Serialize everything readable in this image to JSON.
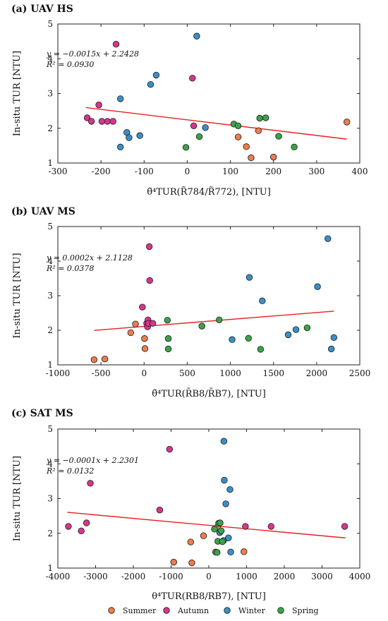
{
  "colors": {
    "Summer": "#ef7b4f",
    "Autumn": "#d6368b",
    "Winter": "#3a8fc9",
    "Spring": "#3aa44a",
    "fit_line": "#e8201f"
  },
  "legend": {
    "items": [
      "Summer",
      "Autumn",
      "Winter",
      "Spring"
    ]
  },
  "chart_data": [
    {
      "type": "scatter",
      "title": "(a) UAV HS",
      "xlabel": "θ̃⁴TUR(R̃784/R̃772), [NTU]",
      "ylabel": "In-situ TUR [NTU]",
      "xlim": [
        -300,
        400
      ],
      "ylim": [
        1,
        5
      ],
      "xticks": [
        -300,
        -200,
        -100,
        0,
        100,
        200,
        300,
        400
      ],
      "yticks": [
        1,
        2,
        3,
        4,
        5
      ],
      "grid": false,
      "legend_position": "bottom",
      "equation": "y = −0.0015x + 2.2428",
      "r2": "R² = 0.0930",
      "fit": {
        "slope": -0.0015,
        "intercept": 2.2428,
        "x_range": [
          -235,
          370
        ]
      },
      "series": [
        {
          "name": "Summer",
          "points": [
            [
              118,
              1.75
            ],
            [
              137,
              1.47
            ],
            [
              148,
              1.15
            ],
            [
              165,
              1.93
            ],
            [
              200,
              1.17
            ],
            [
              370,
              2.18
            ]
          ]
        },
        {
          "name": "Autumn",
          "points": [
            [
              -232,
              2.3
            ],
            [
              -222,
              2.2
            ],
            [
              -205,
              2.67
            ],
            [
              -198,
              2.2
            ],
            [
              -185,
              2.2
            ],
            [
              -172,
              2.2
            ],
            [
              -165,
              4.42
            ],
            [
              12,
              3.44
            ],
            [
              15,
              2.07
            ]
          ]
        },
        {
          "name": "Winter",
          "points": [
            [
              -155,
              2.85
            ],
            [
              -155,
              1.46
            ],
            [
              -140,
              1.88
            ],
            [
              -135,
              1.73
            ],
            [
              -110,
              1.79
            ],
            [
              -85,
              3.26
            ],
            [
              -72,
              3.53
            ],
            [
              22,
              4.65
            ],
            [
              42,
              2.02
            ]
          ]
        },
        {
          "name": "Spring",
          "points": [
            [
              -3,
              1.45
            ],
            [
              28,
              1.76
            ],
            [
              108,
              2.12
            ],
            [
              118,
              2.07
            ],
            [
              168,
              2.29
            ],
            [
              182,
              2.3
            ],
            [
              212,
              1.77
            ],
            [
              248,
              1.46
            ]
          ]
        }
      ]
    },
    {
      "type": "scatter",
      "title": "(b) UAV MS",
      "xlabel": "θ̄⁴TUR(R̄B8/R̄B7), [NTU]",
      "ylabel": "In-situ TUR [NTU]",
      "xlim": [
        -1000,
        2500
      ],
      "ylim": [
        1,
        5
      ],
      "xticks": [
        -1000,
        -500,
        0,
        500,
        1000,
        1500,
        2000,
        2500
      ],
      "yticks": [
        1,
        2,
        3,
        4,
        5
      ],
      "grid": false,
      "legend_position": "bottom",
      "equation": "y = 0.0002x + 2.1128",
      "r2": "R² = 0.0378",
      "fit": {
        "slope": 0.0002,
        "intercept": 2.1128,
        "x_range": [
          -580,
          2200
        ]
      },
      "series": [
        {
          "name": "Summer",
          "points": [
            [
              -580,
              1.15
            ],
            [
              -455,
              1.17
            ],
            [
              -155,
              1.93
            ],
            [
              -100,
              2.18
            ],
            [
              5,
              1.76
            ],
            [
              10,
              1.47
            ]
          ]
        },
        {
          "name": "Autumn",
          "points": [
            [
              -20,
              2.67
            ],
            [
              30,
              2.2
            ],
            [
              40,
              2.1
            ],
            [
              45,
              2.3
            ],
            [
              50,
              2.2
            ],
            [
              60,
              4.42
            ],
            [
              65,
              3.44
            ],
            [
              100,
              2.2
            ]
          ]
        },
        {
          "name": "Winter",
          "points": [
            [
              1020,
              1.73
            ],
            [
              1220,
              3.53
            ],
            [
              1370,
              2.85
            ],
            [
              1670,
              1.87
            ],
            [
              1760,
              2.02
            ],
            [
              2010,
              3.26
            ],
            [
              2130,
              4.65
            ],
            [
              2170,
              1.46
            ],
            [
              2200,
              1.79
            ]
          ]
        },
        {
          "name": "Spring",
          "points": [
            [
              270,
              2.29
            ],
            [
              280,
              1.76
            ],
            [
              280,
              1.46
            ],
            [
              670,
              2.12
            ],
            [
              870,
              2.3
            ],
            [
              1210,
              1.77
            ],
            [
              1350,
              1.45
            ],
            [
              1890,
              2.07
            ]
          ]
        }
      ]
    },
    {
      "type": "scatter",
      "title": "(c) SAT MS",
      "xlabel": "θ⁴TUR(RB8/RB7), [NTU]",
      "ylabel": "In-situ TUR [NTU]",
      "xlim": [
        -4000,
        4000
      ],
      "ylim": [
        1,
        5
      ],
      "xticks": [
        -4000,
        -3000,
        -2000,
        -1000,
        0,
        1000,
        2000,
        3000,
        4000
      ],
      "yticks": [
        1,
        2,
        3,
        4,
        5
      ],
      "grid": false,
      "legend_position": "bottom",
      "equation": "y = −0.0001x + 2.2301",
      "r2": "R² = 0.0132",
      "fit": {
        "slope": -0.0001,
        "intercept": 2.2301,
        "x_range": [
          -3750,
          3620
        ]
      },
      "series": [
        {
          "name": "Summer",
          "points": [
            [
              -930,
              1.17
            ],
            [
              -480,
              1.75
            ],
            [
              -450,
              1.15
            ],
            [
              -140,
              1.93
            ],
            [
              230,
              2.18
            ],
            [
              930,
              1.47
            ]
          ]
        },
        {
          "name": "Autumn",
          "points": [
            [
              -3720,
              2.2
            ],
            [
              -3380,
              2.07
            ],
            [
              -3240,
              2.3
            ],
            [
              -3140,
              3.44
            ],
            [
              -1300,
              2.67
            ],
            [
              -1040,
              4.42
            ],
            [
              970,
              2.2
            ],
            [
              1650,
              2.2
            ],
            [
              3600,
              2.2
            ]
          ]
        },
        {
          "name": "Winter",
          "points": [
            [
              290,
              2.02
            ],
            [
              390,
              1.79
            ],
            [
              410,
              3.53
            ],
            [
              400,
              4.65
            ],
            [
              450,
              2.85
            ],
            [
              520,
              1.87
            ],
            [
              560,
              3.26
            ],
            [
              580,
              1.46
            ]
          ]
        },
        {
          "name": "Spring",
          "points": [
            [
              150,
              2.12
            ],
            [
              180,
              1.46
            ],
            [
              220,
              1.45
            ],
            [
              240,
              1.77
            ],
            [
              260,
              2.29
            ],
            [
              300,
              2.3
            ],
            [
              330,
              2.07
            ],
            [
              360,
              1.76
            ]
          ]
        }
      ]
    }
  ]
}
